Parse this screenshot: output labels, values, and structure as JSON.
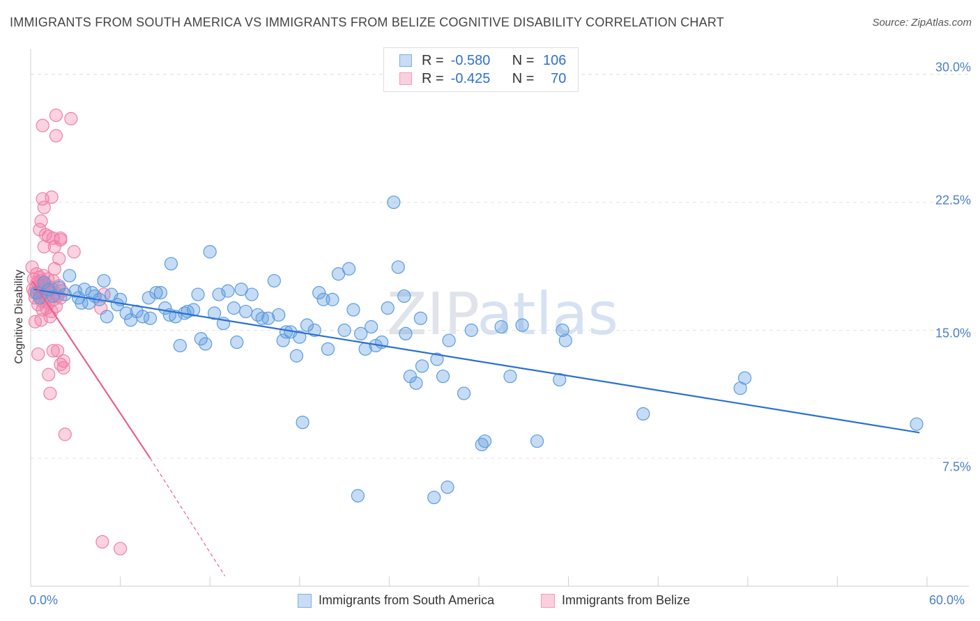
{
  "title": "IMMIGRANTS FROM SOUTH AMERICA VS IMMIGRANTS FROM BELIZE COGNITIVE DISABILITY CORRELATION CHART",
  "source": "Source: ZipAtlas.com",
  "watermark": {
    "part1": "ZIP",
    "part2": "atlas"
  },
  "legend": {
    "r_label": "R =",
    "n_label": "N =",
    "series1": {
      "r": "-0.580",
      "n": "106"
    },
    "series2": {
      "r": "-0.425",
      "n": "70"
    }
  },
  "colors": {
    "blue": "#5b9be0",
    "blue_line": "#2a6fd4",
    "pink": "#f07fa6",
    "pink_line": "#e8608f"
  },
  "chart_data": {
    "type": "scatter",
    "title": "IMMIGRANTS FROM SOUTH AMERICA VS IMMIGRANTS FROM BELIZE COGNITIVE DISABILITY CORRELATION CHART",
    "xlabel": "",
    "ylabel": "Cognitive Disability",
    "xlim": [
      0,
      60
    ],
    "ylim": [
      0,
      31.5
    ],
    "x_tick_labels": [
      "0.0%",
      "60.0%"
    ],
    "y_ticks": [
      {
        "value": 7.5,
        "label": "7.5%"
      },
      {
        "value": 15.0,
        "label": "15.0%"
      },
      {
        "value": 22.5,
        "label": "22.5%"
      },
      {
        "value": 30.0,
        "label": "30.0%"
      }
    ],
    "series": [
      {
        "name": "Immigrants from South America",
        "color": "#5b9be0",
        "R": -0.58,
        "N": 106,
        "trend": {
          "x": [
            0.2,
            59.5
          ],
          "y": [
            17.4,
            9.0
          ]
        },
        "points": [
          [
            0.4,
            17.2
          ],
          [
            0.6,
            16.9
          ],
          [
            0.9,
            17.8
          ],
          [
            1.2,
            17.4
          ],
          [
            1.5,
            17.0
          ],
          [
            1.9,
            17.5
          ],
          [
            2.3,
            17.1
          ],
          [
            2.6,
            18.2
          ],
          [
            3.0,
            17.3
          ],
          [
            3.2,
            16.9
          ],
          [
            3.4,
            16.6
          ],
          [
            3.6,
            17.4
          ],
          [
            3.9,
            16.6
          ],
          [
            4.1,
            17.2
          ],
          [
            4.3,
            17.0
          ],
          [
            4.6,
            16.8
          ],
          [
            4.9,
            17.9
          ],
          [
            5.1,
            15.8
          ],
          [
            5.4,
            17.1
          ],
          [
            5.8,
            16.5
          ],
          [
            6.0,
            16.8
          ],
          [
            6.4,
            16.0
          ],
          [
            6.7,
            15.6
          ],
          [
            7.1,
            16.1
          ],
          [
            7.5,
            15.8
          ],
          [
            7.9,
            16.9
          ],
          [
            8.0,
            15.7
          ],
          [
            8.4,
            17.2
          ],
          [
            8.7,
            17.2
          ],
          [
            9.0,
            16.3
          ],
          [
            9.3,
            15.9
          ],
          [
            9.4,
            18.9
          ],
          [
            9.7,
            15.8
          ],
          [
            10.0,
            14.1
          ],
          [
            10.3,
            16.0
          ],
          [
            10.5,
            16.1
          ],
          [
            10.9,
            16.2
          ],
          [
            11.2,
            17.1
          ],
          [
            11.4,
            14.5
          ],
          [
            11.7,
            14.2
          ],
          [
            12.0,
            19.6
          ],
          [
            12.3,
            16.0
          ],
          [
            12.6,
            17.1
          ],
          [
            12.9,
            15.4
          ],
          [
            13.2,
            17.3
          ],
          [
            13.6,
            16.3
          ],
          [
            13.8,
            14.3
          ],
          [
            14.1,
            17.4
          ],
          [
            14.4,
            16.1
          ],
          [
            14.8,
            17.1
          ],
          [
            15.2,
            15.9
          ],
          [
            15.5,
            15.7
          ],
          [
            15.9,
            15.7
          ],
          [
            16.3,
            17.9
          ],
          [
            16.6,
            15.9
          ],
          [
            16.9,
            14.4
          ],
          [
            17.1,
            14.9
          ],
          [
            17.4,
            14.9
          ],
          [
            17.8,
            13.5
          ],
          [
            18.0,
            14.6
          ],
          [
            18.2,
            9.6
          ],
          [
            18.5,
            15.3
          ],
          [
            19.0,
            15.0
          ],
          [
            19.3,
            17.2
          ],
          [
            19.6,
            16.8
          ],
          [
            19.9,
            13.9
          ],
          [
            20.2,
            16.8
          ],
          [
            20.6,
            18.3
          ],
          [
            21.0,
            15.0
          ],
          [
            21.3,
            18.6
          ],
          [
            21.6,
            16.2
          ],
          [
            21.9,
            5.3
          ],
          [
            22.1,
            14.8
          ],
          [
            22.4,
            13.9
          ],
          [
            22.8,
            15.2
          ],
          [
            23.1,
            14.1
          ],
          [
            23.5,
            14.3
          ],
          [
            23.9,
            16.3
          ],
          [
            24.3,
            22.5
          ],
          [
            24.6,
            18.7
          ],
          [
            25.0,
            17.0
          ],
          [
            25.1,
            14.8
          ],
          [
            25.4,
            12.3
          ],
          [
            25.8,
            11.9
          ],
          [
            26.1,
            15.7
          ],
          [
            26.2,
            12.9
          ],
          [
            27.0,
            5.2
          ],
          [
            27.2,
            13.3
          ],
          [
            27.6,
            12.3
          ],
          [
            27.9,
            5.8
          ],
          [
            28.0,
            14.4
          ],
          [
            29.0,
            11.3
          ],
          [
            29.5,
            15.0
          ],
          [
            30.2,
            8.3
          ],
          [
            30.4,
            8.5
          ],
          [
            31.5,
            15.2
          ],
          [
            32.1,
            12.3
          ],
          [
            32.9,
            15.3
          ],
          [
            33.9,
            8.5
          ],
          [
            35.4,
            12.1
          ],
          [
            35.6,
            15.0
          ],
          [
            35.8,
            14.4
          ],
          [
            41.0,
            10.1
          ],
          [
            47.5,
            11.6
          ],
          [
            47.8,
            12.2
          ],
          [
            59.3,
            9.5
          ]
        ]
      },
      {
        "name": "Immigrants from Belize",
        "color": "#f07fa6",
        "R": -0.425,
        "N": 70,
        "trend": {
          "x": [
            0.1,
            8.0
          ],
          "y": [
            17.9,
            7.5
          ]
        },
        "trend_extension": {
          "x": [
            8.0,
            13.0
          ],
          "y": [
            7.5,
            0.6
          ]
        },
        "points": [
          [
            0.1,
            18.7
          ],
          [
            0.15,
            17.4
          ],
          [
            0.2,
            18.0
          ],
          [
            0.25,
            17.2
          ],
          [
            0.3,
            16.9
          ],
          [
            0.35,
            17.5
          ],
          [
            0.4,
            18.3
          ],
          [
            0.45,
            17.8
          ],
          [
            0.5,
            16.5
          ],
          [
            0.55,
            17.3
          ],
          [
            0.6,
            18.1
          ],
          [
            0.65,
            17.0
          ],
          [
            0.7,
            17.9
          ],
          [
            0.75,
            16.7
          ],
          [
            0.8,
            17.4
          ],
          [
            0.85,
            18.2
          ],
          [
            0.9,
            17.6
          ],
          [
            0.95,
            16.9
          ],
          [
            1.0,
            17.7
          ],
          [
            1.05,
            16.3
          ],
          [
            1.1,
            17.1
          ],
          [
            1.15,
            18.0
          ],
          [
            1.2,
            16.6
          ],
          [
            1.25,
            17.3
          ],
          [
            1.3,
            15.8
          ],
          [
            1.35,
            17.5
          ],
          [
            1.4,
            16.1
          ],
          [
            1.5,
            17.9
          ],
          [
            1.55,
            16.8
          ],
          [
            1.6,
            18.6
          ],
          [
            1.65,
            17.2
          ],
          [
            1.7,
            16.4
          ],
          [
            1.8,
            17.0
          ],
          [
            1.9,
            17.6
          ],
          [
            2.0,
            16.9
          ],
          [
            2.1,
            17.3
          ],
          [
            0.3,
            15.5
          ],
          [
            0.5,
            13.6
          ],
          [
            0.7,
            15.6
          ],
          [
            0.8,
            16.2
          ],
          [
            0.9,
            19.9
          ],
          [
            1.0,
            20.6
          ],
          [
            0.6,
            20.9
          ],
          [
            0.7,
            21.4
          ],
          [
            0.8,
            22.7
          ],
          [
            0.9,
            22.2
          ],
          [
            1.4,
            22.8
          ],
          [
            1.2,
            20.5
          ],
          [
            1.5,
            20.4
          ],
          [
            1.6,
            19.9
          ],
          [
            1.9,
            19.2
          ],
          [
            2.0,
            20.3
          ],
          [
            2.0,
            20.4
          ],
          [
            1.7,
            26.4
          ],
          [
            0.8,
            27.0
          ],
          [
            1.7,
            27.6
          ],
          [
            2.7,
            27.4
          ],
          [
            2.9,
            19.6
          ],
          [
            1.2,
            12.4
          ],
          [
            1.3,
            11.3
          ],
          [
            1.5,
            13.8
          ],
          [
            1.8,
            13.8
          ],
          [
            2.0,
            13.0
          ],
          [
            2.2,
            13.2
          ],
          [
            2.2,
            12.8
          ],
          [
            2.3,
            8.9
          ],
          [
            4.7,
            16.3
          ],
          [
            4.9,
            17.1
          ],
          [
            4.8,
            2.6
          ],
          [
            6.0,
            2.2
          ]
        ]
      }
    ]
  },
  "bottom_legend": {
    "item1": "Immigrants from South America",
    "item2": "Immigrants from Belize"
  }
}
